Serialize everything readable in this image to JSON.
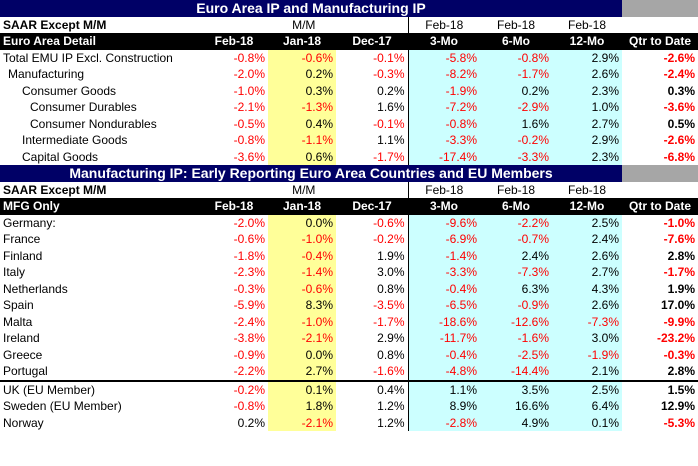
{
  "section1": {
    "title": "Euro Area IP and Manufacturing IP",
    "sub_label": "SAAR Except M/M",
    "mm_label": "M/M",
    "feb_labels": [
      "Feb-18",
      "Feb-18",
      "Feb-18"
    ],
    "header_label": "Euro Area Detail",
    "columns": [
      "Feb-18",
      "Jan-18",
      "Dec-17",
      "3-Mo",
      "6-Mo",
      "12-Mo",
      "Qtr to Date"
    ],
    "rows": [
      {
        "label": "Total EMU IP Excl. Construction",
        "indent": 0,
        "values": [
          "-0.8%",
          "-0.6%",
          "-0.1%",
          "-5.8%",
          "-0.8%",
          "2.9%",
          "-2.6%"
        ]
      },
      {
        "label": "Manufacturing",
        "indent": 1,
        "values": [
          "-2.0%",
          "0.2%",
          "-0.3%",
          "-8.2%",
          "-1.7%",
          "2.6%",
          "-2.4%"
        ]
      },
      {
        "label": "Consumer Goods",
        "indent": 2,
        "values": [
          "-1.0%",
          "0.3%",
          "0.2%",
          "-1.9%",
          "0.2%",
          "2.3%",
          "0.3%"
        ]
      },
      {
        "label": "Consumer Durables",
        "indent": 3,
        "values": [
          "-2.1%",
          "-1.3%",
          "1.6%",
          "-7.2%",
          "-2.9%",
          "1.0%",
          "-3.6%"
        ]
      },
      {
        "label": "Consumer Nondurables",
        "indent": 3,
        "values": [
          "-0.5%",
          "0.4%",
          "-0.1%",
          "-0.8%",
          "1.6%",
          "2.7%",
          "0.5%"
        ]
      },
      {
        "label": "Intermediate Goods",
        "indent": 2,
        "values": [
          "-0.8%",
          "-1.1%",
          "1.1%",
          "-3.3%",
          "-0.2%",
          "2.9%",
          "-2.6%"
        ]
      },
      {
        "label": "Capital Goods",
        "indent": 2,
        "values": [
          "-3.6%",
          "0.6%",
          "-1.7%",
          "-17.4%",
          "-3.3%",
          "2.3%",
          "-6.8%"
        ]
      }
    ]
  },
  "section2": {
    "title": "Manufacturing IP: Early Reporting Euro Area Countries and EU Members",
    "sub_label": "SAAR Except M/M",
    "mm_label": "M/M",
    "feb_labels": [
      "Feb-18",
      "Feb-18",
      "Feb-18"
    ],
    "header_label": "MFG Only",
    "columns": [
      "Feb-18",
      "Jan-18",
      "Dec-17",
      "3-Mo",
      "6-Mo",
      "12-Mo",
      "Qtr to Date"
    ],
    "rows": [
      {
        "label": "Germany:",
        "values": [
          "-2.0%",
          "0.0%",
          "-0.6%",
          "-9.6%",
          "-2.2%",
          "2.5%",
          "-1.0%"
        ]
      },
      {
        "label": "France",
        "values": [
          "-0.6%",
          "-1.0%",
          "-0.2%",
          "-6.9%",
          "-0.7%",
          "2.4%",
          "-7.6%"
        ]
      },
      {
        "label": "Finland",
        "values": [
          "-1.8%",
          "-0.4%",
          "1.9%",
          "-1.4%",
          "2.4%",
          "2.6%",
          "2.8%"
        ]
      },
      {
        "label": "Italy",
        "values": [
          "-2.3%",
          "-1.4%",
          "3.0%",
          "-3.3%",
          "-7.3%",
          "2.7%",
          "-1.7%"
        ]
      },
      {
        "label": "Netherlands",
        "values": [
          "-0.3%",
          "-0.6%",
          "0.8%",
          "-0.4%",
          "6.3%",
          "4.3%",
          "1.9%"
        ]
      },
      {
        "label": "Spain",
        "values": [
          "-5.9%",
          "8.3%",
          "-3.5%",
          "-6.5%",
          "-0.9%",
          "2.6%",
          "17.0%"
        ]
      },
      {
        "label": "Malta",
        "values": [
          "-2.4%",
          "-1.0%",
          "-1.7%",
          "-18.6%",
          "-12.6%",
          "-7.3%",
          "-9.9%"
        ]
      },
      {
        "label": "Ireland",
        "values": [
          "-3.8%",
          "-2.1%",
          "2.9%",
          "-11.7%",
          "-1.6%",
          "3.0%",
          "-23.2%"
        ]
      },
      {
        "label": "Greece",
        "values": [
          "-0.9%",
          "0.0%",
          "0.8%",
          "-0.4%",
          "-2.5%",
          "-1.9%",
          "-0.3%"
        ]
      },
      {
        "label": "Portugal",
        "values": [
          "-2.2%",
          "2.7%",
          "-1.6%",
          "-4.8%",
          "-14.4%",
          "2.1%",
          "2.8%"
        ]
      }
    ],
    "eu_rows": [
      {
        "label": "UK (EU Member)",
        "values": [
          "-0.2%",
          "0.1%",
          "0.4%",
          "1.1%",
          "3.5%",
          "2.5%",
          "1.5%"
        ]
      },
      {
        "label": "Sweden (EU Member)",
        "values": [
          "-0.8%",
          "1.8%",
          "1.2%",
          "8.9%",
          "16.6%",
          "6.4%",
          "12.9%"
        ]
      },
      {
        "label": "Norway",
        "values": [
          "0.2%",
          "-2.1%",
          "1.2%",
          "-2.8%",
          "4.9%",
          "0.1%",
          "-5.3%"
        ]
      }
    ]
  },
  "colors": {
    "title_bg": "#000066",
    "highlight_jan": "#ffff99",
    "highlight_cyan": "#ccffff",
    "negative": "#ff0000",
    "corner_grey": "#a6a6a6"
  }
}
